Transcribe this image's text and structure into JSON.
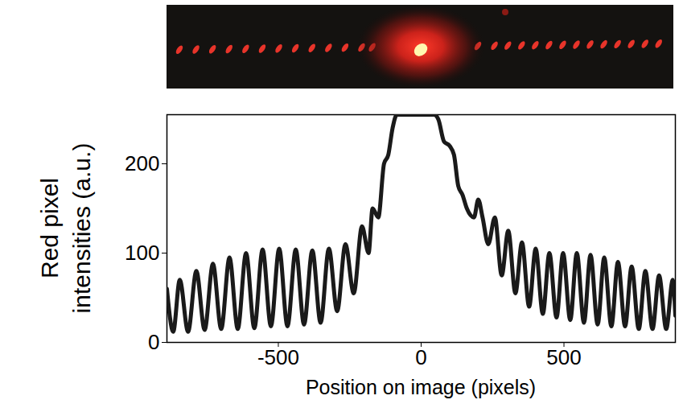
{
  "chart_data": {
    "type": "line",
    "x_label": "Position on image (pixels)",
    "y_label": "Red pixel intensities (a.u.)",
    "color": "#1a1a1a",
    "x": [
      -890,
      -868,
      -845,
      -816,
      -787,
      -758,
      -729,
      -700,
      -671,
      -642,
      -613,
      -584,
      -555,
      -526,
      -497,
      -468,
      -439,
      -410,
      -381,
      -352,
      -323,
      -294,
      -265,
      -236,
      -207,
      -184,
      -170,
      -150,
      -130,
      -115,
      -100,
      -85,
      45,
      60,
      80,
      100,
      115,
      130,
      145,
      160,
      185,
      200,
      215,
      235,
      258,
      282,
      305,
      330,
      353,
      378,
      401,
      426,
      449,
      474,
      497,
      522,
      545,
      570,
      593,
      618,
      641,
      666,
      689,
      714,
      737,
      762,
      785,
      810,
      833,
      858,
      881,
      890
    ],
    "values": [
      60,
      12,
      70,
      12,
      80,
      14,
      88,
      15,
      95,
      15,
      100,
      16,
      104,
      18,
      105,
      18,
      104,
      20,
      103,
      22,
      105,
      35,
      110,
      55,
      130,
      100,
      150,
      140,
      200,
      210,
      240,
      255,
      255,
      250,
      225,
      220,
      210,
      175,
      165,
      150,
      140,
      160,
      140,
      110,
      140,
      75,
      125,
      55,
      112,
      40,
      105,
      32,
      100,
      28,
      100,
      25,
      100,
      22,
      98,
      20,
      95,
      18,
      90,
      18,
      85,
      15,
      80,
      15,
      75,
      15,
      70,
      30
    ],
    "xlim": [
      -890,
      890
    ],
    "ylim": [
      0,
      255
    ],
    "xticks": [
      -500,
      0,
      500
    ],
    "yticks": [
      0,
      100,
      200
    ],
    "grid": false
  }
}
